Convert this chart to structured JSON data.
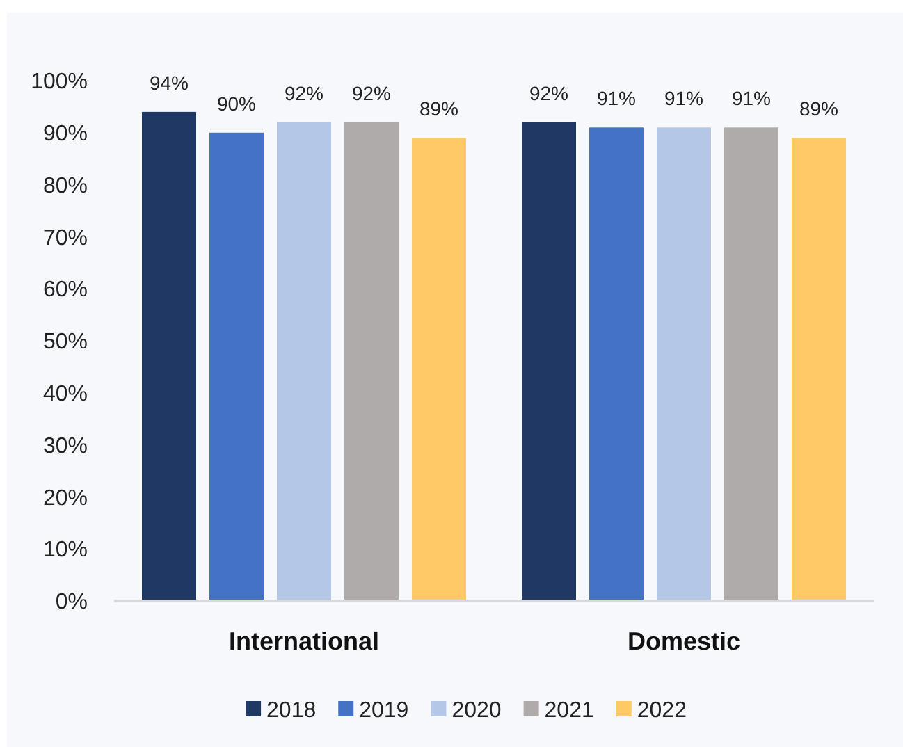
{
  "chart_data": {
    "type": "bar",
    "categories": [
      "International",
      "Domestic"
    ],
    "series": [
      {
        "name": "2018",
        "color": "#203864",
        "values": [
          94,
          92
        ],
        "value_labels": [
          "94%",
          "92%"
        ]
      },
      {
        "name": "2019",
        "color": "#4472c4",
        "values": [
          90,
          91
        ],
        "value_labels": [
          "90%",
          "91%"
        ]
      },
      {
        "name": "2020",
        "color": "#b4c7e7",
        "values": [
          92,
          91
        ],
        "value_labels": [
          "92%",
          "91%"
        ]
      },
      {
        "name": "2021",
        "color": "#afabab",
        "values": [
          92,
          91
        ],
        "value_labels": [
          "92%",
          "91%"
        ]
      },
      {
        "name": "2022",
        "color": "#ffc966",
        "values": [
          89,
          89
        ],
        "value_labels": [
          "89%",
          "89%"
        ]
      }
    ],
    "ylim": [
      0,
      100
    ],
    "yticks": [
      {
        "value": 0,
        "label": "0%"
      },
      {
        "value": 10,
        "label": "10%"
      },
      {
        "value": 20,
        "label": "20%"
      },
      {
        "value": 30,
        "label": "30%"
      },
      {
        "value": 40,
        "label": "40%"
      },
      {
        "value": 50,
        "label": "50%"
      },
      {
        "value": 60,
        "label": "60%"
      },
      {
        "value": 70,
        "label": "70%"
      },
      {
        "value": 80,
        "label": "80%"
      },
      {
        "value": 90,
        "label": "90%"
      },
      {
        "value": 100,
        "label": "100%"
      }
    ],
    "legend": "bottom"
  }
}
